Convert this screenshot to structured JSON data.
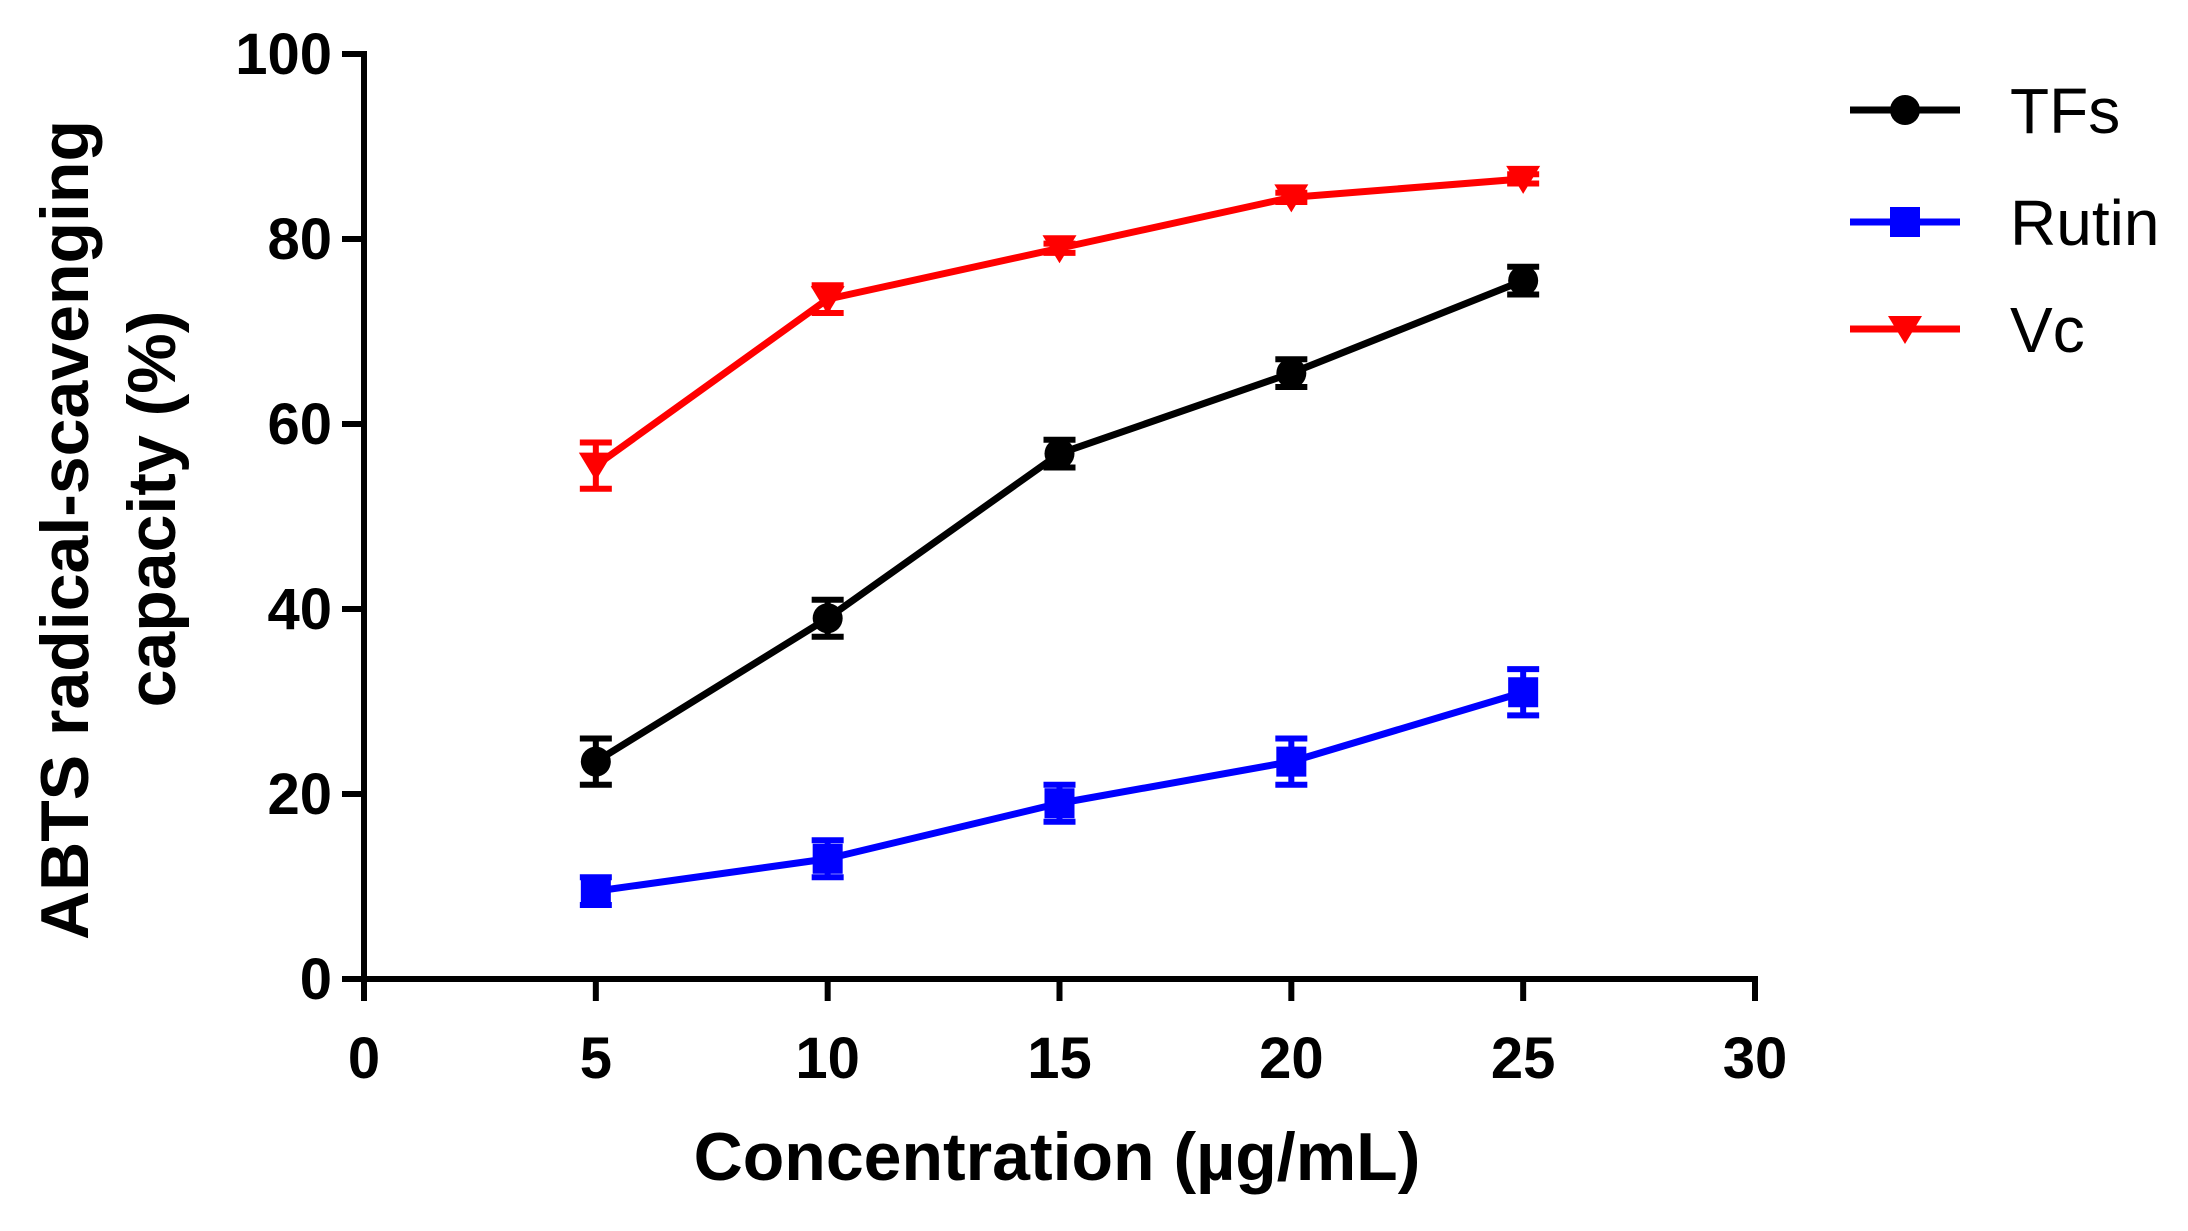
{
  "chart_data": {
    "type": "line",
    "title": "",
    "xlabel": "Concentration (µg/mL)",
    "ylabel_lines": [
      "ABTS radical-scavenging",
      "capacity (%)"
    ],
    "xlim": [
      0,
      30
    ],
    "ylim": [
      0,
      100
    ],
    "x_ticks": [
      0,
      5,
      10,
      15,
      20,
      25,
      30
    ],
    "y_ticks": [
      0,
      20,
      40,
      60,
      80,
      100
    ],
    "grid": false,
    "legend_position": "top-right",
    "x": [
      5,
      10,
      15,
      20,
      25
    ],
    "series": [
      {
        "name": "TFs",
        "color": "#000000",
        "marker": "circle",
        "values": [
          23.5,
          39,
          56.8,
          65.5,
          75.5
        ],
        "errors": [
          2.5,
          2,
          1.5,
          1.5,
          1.5
        ]
      },
      {
        "name": "Rutin",
        "color": "#0000ff",
        "marker": "square",
        "values": [
          9.5,
          13,
          19,
          23.5,
          31
        ],
        "errors": [
          1.5,
          2,
          2,
          2.5,
          2.5
        ]
      },
      {
        "name": "Vc",
        "color": "#ff0000",
        "marker": "triangle-down",
        "values": [
          55.5,
          73.5,
          79,
          84.5,
          86.5
        ],
        "errors": [
          2.5,
          1.5,
          0.5,
          0.5,
          0.5
        ]
      }
    ]
  }
}
